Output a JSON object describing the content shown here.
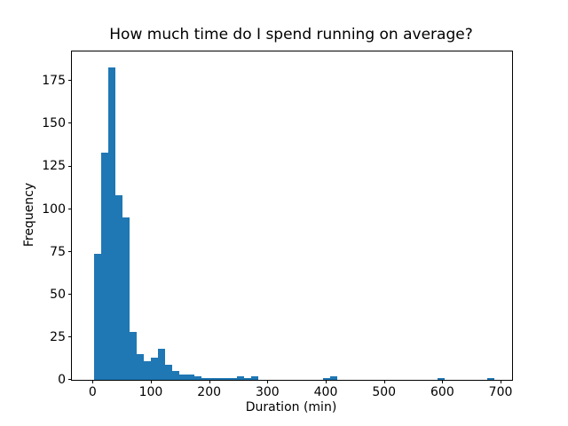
{
  "figure": {
    "background": "#ffffff"
  },
  "chart_data": {
    "type": "bar",
    "subtype": "histogram",
    "title": "How much time do I spend running on average?",
    "xlabel": "Duration (min)",
    "ylabel": "Frequency",
    "bar_color": "#1f77b4",
    "grid": false,
    "legend": false,
    "bin_start": 2,
    "bin_width": 12.2857,
    "counts": [
      74,
      133,
      183,
      108,
      95,
      28,
      15,
      11,
      13,
      18,
      9,
      5,
      3,
      3,
      2,
      1,
      1,
      1,
      1,
      1,
      2,
      1,
      2,
      0,
      0,
      0,
      0,
      0,
      0,
      0,
      0,
      0,
      1,
      2,
      0,
      0,
      0,
      0,
      0,
      0,
      0,
      0,
      0,
      0,
      0,
      0,
      0,
      0,
      1,
      0,
      0,
      0,
      0,
      0,
      0,
      1
    ],
    "x_ticks": [
      0,
      100,
      200,
      300,
      400,
      500,
      600,
      700
    ],
    "y_ticks": [
      0,
      25,
      50,
      75,
      100,
      125,
      150,
      175
    ],
    "xlim": [
      -35.5,
      719.7
    ],
    "ylim": [
      0,
      192.3
    ]
  }
}
